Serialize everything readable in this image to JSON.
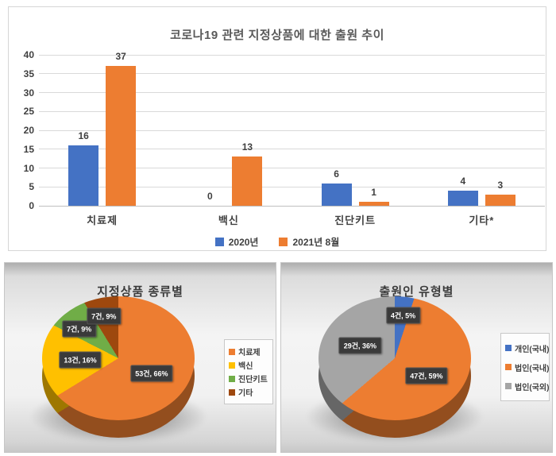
{
  "colors": {
    "series_2020": "#4472C4",
    "series_2021": "#ED7D31",
    "vaccine_yellow": "#FFC000",
    "kit_green": "#70AD47",
    "etc_brown": "#9E480E",
    "corp_foreign_gray": "#A5A5A5",
    "data_label_box": "#3A3A3A",
    "axis_text": "#404040",
    "gridline": "#D9D9D9"
  },
  "chart_data": [
    {
      "type": "bar",
      "title": "코로나19 관련 지정상품에 대한 출원 추이",
      "categories": [
        "치료제",
        "백신",
        "진단키트",
        "기타*"
      ],
      "series": [
        {
          "name": "2020년",
          "color": "#4472C4",
          "values": [
            16,
            0,
            6,
            4
          ]
        },
        {
          "name": "2021년 8월",
          "color": "#ED7D31",
          "values": [
            37,
            13,
            1,
            3
          ]
        }
      ],
      "ylim": [
        0,
        40
      ],
      "ytick_step": 5,
      "grid": true,
      "legend_position": "bottom"
    },
    {
      "type": "pie",
      "title": "지정상품 종류별",
      "slices": [
        {
          "name": "치료제",
          "value": 53,
          "pct": 66,
          "label": "53건, 66%",
          "color": "#ED7D31"
        },
        {
          "name": "백신",
          "value": 13,
          "pct": 16,
          "label": "13건, 16%",
          "color": "#FFC000"
        },
        {
          "name": "진단키트",
          "value": 7,
          "pct": 9,
          "label": "7건, 9%",
          "color": "#70AD47"
        },
        {
          "name": "기타",
          "value": 7,
          "pct": 9,
          "label": "7건, 9%",
          "color": "#9E480E"
        }
      ],
      "start_angle_deg": 0,
      "direction": "clockwise",
      "legend_position": "right"
    },
    {
      "type": "pie",
      "title": "출원인 유형별",
      "slices": [
        {
          "name": "개인(국내)",
          "value": 4,
          "pct": 5,
          "label": "4건, 5%",
          "color": "#4472C4"
        },
        {
          "name": "법인(국내)",
          "value": 47,
          "pct": 59,
          "label": "47건, 59%",
          "color": "#ED7D31"
        },
        {
          "name": "법인(국외)",
          "value": 29,
          "pct": 36,
          "label": "29건, 36%",
          "color": "#A5A5A5"
        }
      ],
      "start_angle_deg": 0,
      "direction": "clockwise",
      "legend_position": "right"
    }
  ]
}
